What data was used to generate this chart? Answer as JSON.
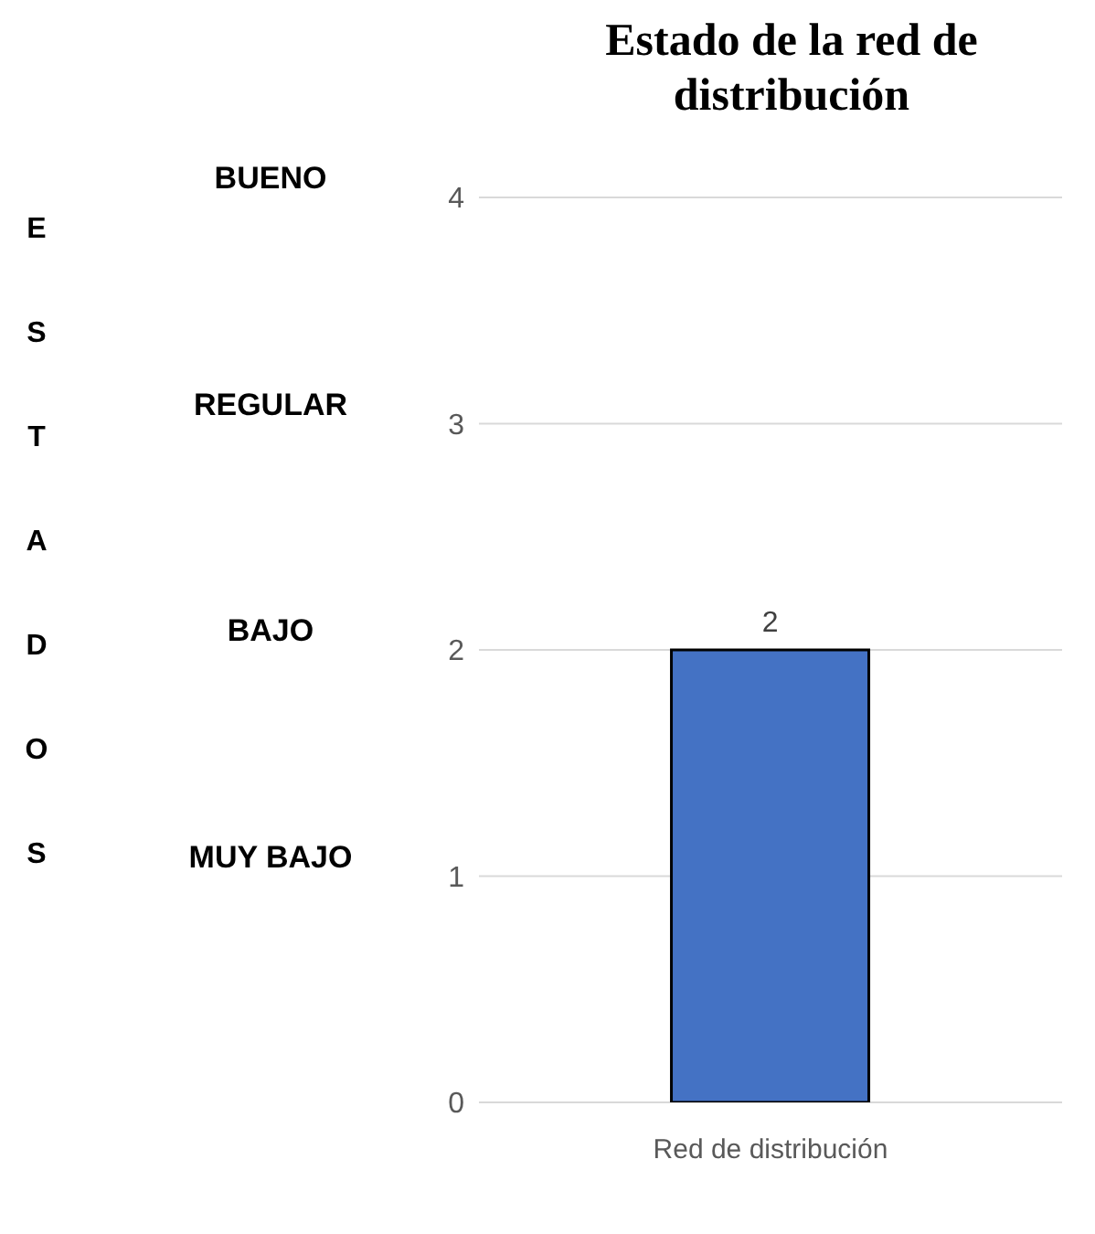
{
  "chart_data": {
    "type": "bar",
    "title": "Estado de la red de distribución",
    "ylabel": "ESTADOS",
    "categories": [
      "Red de distribución"
    ],
    "values": [
      2
    ],
    "color": "#4472c4",
    "ylim": [
      0,
      4
    ],
    "yticks": [
      0,
      1,
      2,
      3,
      4
    ],
    "grid": "y",
    "data_labels": true,
    "annotations": [
      "BUENO",
      "REGULAR",
      "BAJO",
      "MUY BAJO"
    ]
  }
}
